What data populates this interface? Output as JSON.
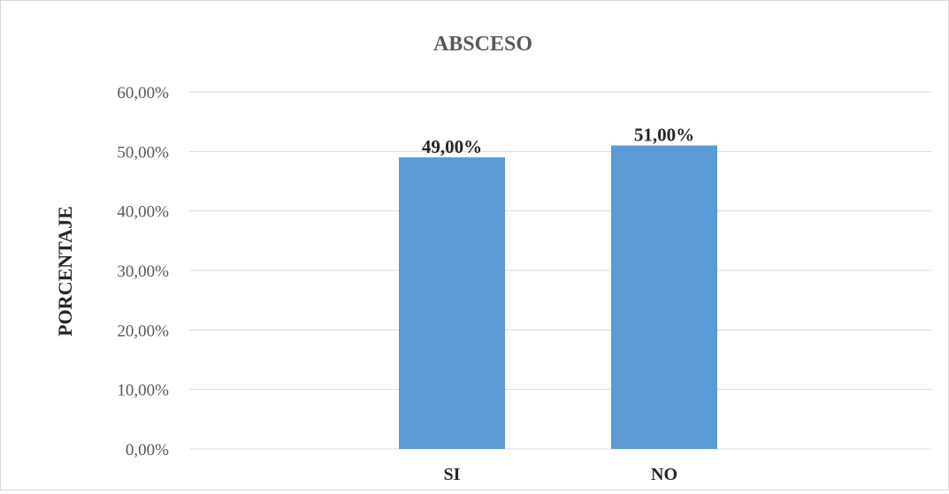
{
  "chart_data": {
    "type": "bar",
    "title": "ABSCESO",
    "xlabel": "",
    "ylabel": "PORCENTAJE",
    "categories": [
      "SI",
      "NO"
    ],
    "values": [
      49.0,
      51.0
    ],
    "data_labels": [
      "49,00%",
      "51,00%"
    ],
    "ylim": [
      0,
      60
    ],
    "yticks": [
      0,
      10,
      20,
      30,
      40,
      50,
      60
    ],
    "ytick_labels": [
      "0,00%",
      "10,00%",
      "20,00%",
      "30,00%",
      "40,00%",
      "50,00%",
      "60,00%"
    ],
    "grid": true,
    "legend": "none",
    "bar_color": "#5b9bd5",
    "grid_color": "#d9d9d9"
  }
}
